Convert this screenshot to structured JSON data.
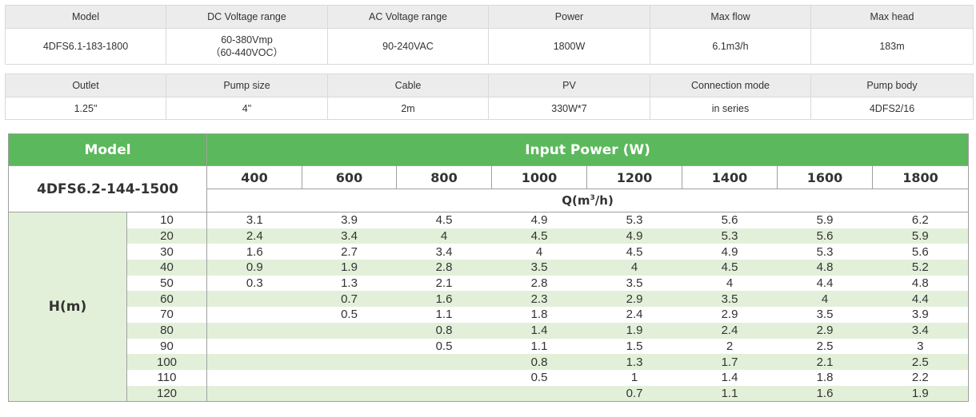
{
  "spec_table_1": {
    "headers": [
      "Model",
      "DC Voltage range",
      "AC Voltage range",
      "Power",
      "Max flow",
      "Max head"
    ],
    "values": [
      "4DFS6.1-183-1800",
      "60-380Vmp",
      "90-240VAC",
      "1800W",
      "6.1m3/h",
      "183m"
    ],
    "dc_voltage_line2": "（60-440VOC）"
  },
  "spec_table_2": {
    "headers": [
      "Outlet",
      "Pump size",
      "Cable",
      "PV",
      "Connection mode",
      "Pump body"
    ],
    "values": [
      "1.25\"",
      "4\"",
      "2m",
      "330W*7",
      "in series",
      "4DFS2/16"
    ]
  },
  "performance_table": {
    "model_header": "Model",
    "power_header": "Input Power (W)",
    "model_name": "4DFS6.2-144-1500",
    "power_values": [
      "400",
      "600",
      "800",
      "1000",
      "1200",
      "1400",
      "1600",
      "1800"
    ],
    "flow_unit_prefix": "Q(m",
    "flow_unit_sup": "3",
    "flow_unit_suffix": "/h)",
    "head_label": "H(m)",
    "heads": [
      "10",
      "20",
      "30",
      "40",
      "50",
      "60",
      "70",
      "80",
      "90",
      "100",
      "110",
      "120"
    ],
    "rows": [
      [
        "3.1",
        "3.9",
        "4.5",
        "4.9",
        "5.3",
        "5.6",
        "5.9",
        "6.2"
      ],
      [
        "2.4",
        "3.4",
        "4",
        "4.5",
        "4.9",
        "5.3",
        "5.6",
        "5.9"
      ],
      [
        "1.6",
        "2.7",
        "3.4",
        "4",
        "4.5",
        "4.9",
        "5.3",
        "5.6"
      ],
      [
        "0.9",
        "1.9",
        "2.8",
        "3.5",
        "4",
        "4.5",
        "4.8",
        "5.2"
      ],
      [
        "0.3",
        "1.3",
        "2.1",
        "2.8",
        "3.5",
        "4",
        "4.4",
        "4.8"
      ],
      [
        "",
        "0.7",
        "1.6",
        "2.3",
        "2.9",
        "3.5",
        "4",
        "4.4"
      ],
      [
        "",
        "0.5",
        "1.1",
        "1.8",
        "2.4",
        "2.9",
        "3.5",
        "3.9"
      ],
      [
        "",
        "",
        "0.8",
        "1.4",
        "1.9",
        "2.4",
        "2.9",
        "3.4"
      ],
      [
        "",
        "",
        "0.5",
        "1.1",
        "1.5",
        "2",
        "2.5",
        "3"
      ],
      [
        "",
        "",
        "",
        "0.8",
        "1.3",
        "1.7",
        "2.1",
        "2.5"
      ],
      [
        "",
        "",
        "",
        "0.5",
        "1",
        "1.4",
        "1.8",
        "2.2"
      ],
      [
        "",
        "",
        "",
        "",
        "0.7",
        "1.1",
        "1.6",
        "1.9"
      ]
    ]
  },
  "colors": {
    "header_green": "#5cb85c",
    "light_green": "#e2f0d9",
    "spec_header_gray": "#ececec"
  }
}
